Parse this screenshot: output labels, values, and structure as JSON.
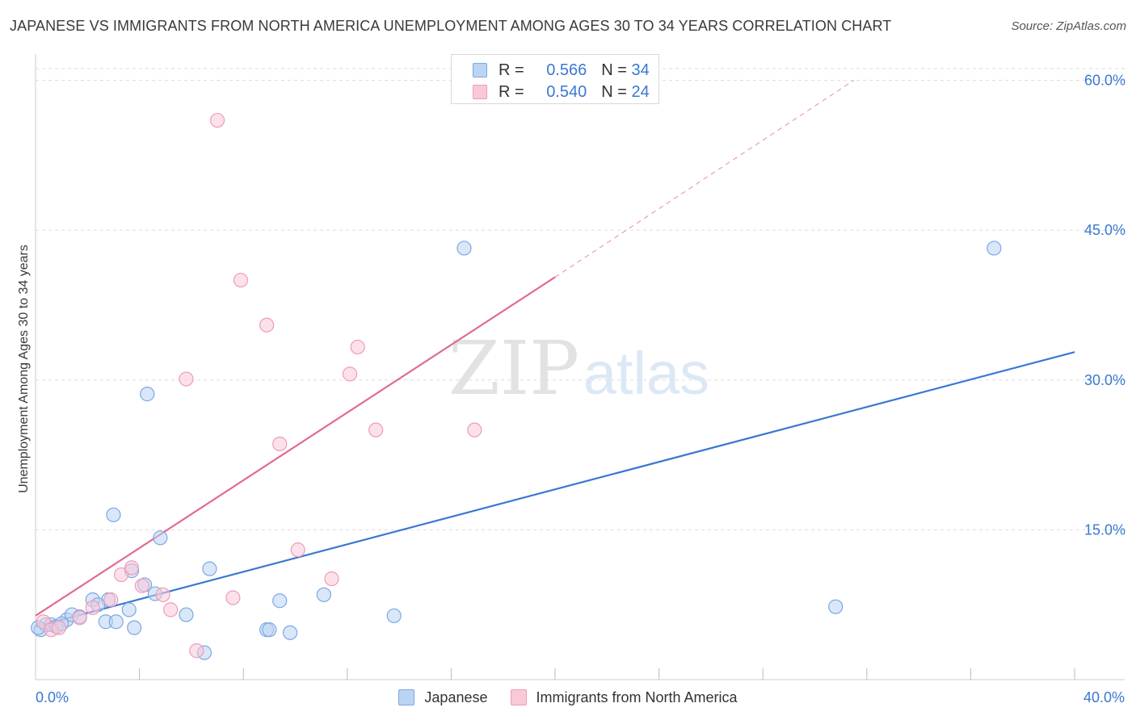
{
  "title": "JAPANESE VS IMMIGRANTS FROM NORTH AMERICA UNEMPLOYMENT AMONG AGES 30 TO 34 YEARS CORRELATION CHART",
  "source": "Source: ZipAtlas.com",
  "watermark": {
    "zip": "ZIP",
    "atlas": "atlas"
  },
  "legend_top": [
    {
      "r_label": "R =",
      "r_value": "0.566",
      "n_label": "N =",
      "n_value": "34"
    },
    {
      "r_label": "R =",
      "r_value": "0.540",
      "n_label": "N =",
      "n_value": "24"
    }
  ],
  "colors": {
    "blue_fill": "#bcd4f4",
    "blue_stroke": "#7aa8e4",
    "blue_line": "#3a78d0",
    "pink_fill": "#f9c9d8",
    "pink_stroke": "#ee9cb6",
    "pink_line": "#e26a93",
    "grid": "#dddddd",
    "tick_text": "#3a78d0"
  },
  "chart_data": {
    "type": "scatter",
    "title": "JAPANESE VS IMMIGRANTS FROM NORTH AMERICA UNEMPLOYMENT AMONG AGES 30 TO 34 YEARS CORRELATION CHART",
    "xlabel": "",
    "ylabel": "Unemployment Among Ages 30 to 34 years",
    "xlim": [
      0,
      40
    ],
    "ylim": [
      0,
      61.5
    ],
    "x_tick_labels": [
      {
        "value": 0,
        "label": "0.0%"
      },
      {
        "value": 40,
        "label": "40.0%"
      }
    ],
    "x_minor_ticks": [
      4,
      8,
      12,
      16,
      20,
      24,
      28,
      32,
      36,
      40
    ],
    "y_tick_labels": [
      {
        "value": 15,
        "label": "15.0%"
      },
      {
        "value": 30,
        "label": "30.0%"
      },
      {
        "value": 45,
        "label": "45.0%"
      },
      {
        "value": 60,
        "label": "60.0%"
      }
    ],
    "grid": true,
    "legend_position": "bottom-center",
    "series": [
      {
        "name": "Japanese",
        "color": "#3a78d0",
        "points": [
          [
            0.2,
            5.0
          ],
          [
            0.4,
            5.5
          ],
          [
            0.6,
            5.5
          ],
          [
            0.8,
            5.3
          ],
          [
            1.2,
            6.0
          ],
          [
            1.4,
            6.5
          ],
          [
            1.7,
            6.3
          ],
          [
            2.2,
            8.0
          ],
          [
            2.7,
            5.8
          ],
          [
            3.1,
            5.8
          ],
          [
            3.0,
            16.5
          ],
          [
            3.6,
            7.0
          ],
          [
            3.7,
            10.9
          ],
          [
            3.8,
            5.2
          ],
          [
            4.2,
            9.5
          ],
          [
            4.3,
            28.6
          ],
          [
            4.6,
            8.6
          ],
          [
            4.8,
            14.2
          ],
          [
            5.8,
            6.5
          ],
          [
            6.5,
            2.7
          ],
          [
            6.7,
            11.1
          ],
          [
            8.9,
            5.0
          ],
          [
            9.0,
            5.0
          ],
          [
            9.4,
            7.9
          ],
          [
            9.8,
            4.7
          ],
          [
            11.1,
            8.5
          ],
          [
            13.8,
            6.4
          ],
          [
            16.5,
            43.2
          ],
          [
            30.8,
            7.3
          ],
          [
            36.9,
            43.2
          ],
          [
            2.8,
            8.0
          ],
          [
            0.1,
            5.2
          ],
          [
            1.0,
            5.6
          ],
          [
            2.4,
            7.5
          ]
        ],
        "trend": {
          "x_start": 0,
          "y_start": 5.3,
          "x_end": 40,
          "y_end": 32.8,
          "dashed_extension": false
        }
      },
      {
        "name": "Immigrants from North America",
        "color": "#e26a93",
        "points": [
          [
            0.3,
            5.8
          ],
          [
            0.6,
            5.0
          ],
          [
            0.9,
            5.2
          ],
          [
            1.7,
            6.2
          ],
          [
            2.2,
            7.2
          ],
          [
            2.9,
            8.0
          ],
          [
            3.3,
            10.5
          ],
          [
            3.7,
            11.2
          ],
          [
            4.1,
            9.4
          ],
          [
            4.9,
            8.5
          ],
          [
            5.2,
            7.0
          ],
          [
            5.8,
            30.1
          ],
          [
            6.2,
            2.9
          ],
          [
            7.0,
            56.0
          ],
          [
            7.6,
            8.2
          ],
          [
            7.9,
            40.0
          ],
          [
            8.9,
            35.5
          ],
          [
            9.4,
            23.6
          ],
          [
            10.1,
            13.0
          ],
          [
            11.4,
            10.1
          ],
          [
            12.1,
            30.6
          ],
          [
            12.4,
            33.3
          ],
          [
            13.1,
            25.0
          ],
          [
            16.9,
            25.0
          ]
        ],
        "trend": {
          "x_start": 0,
          "y_start": 6.4,
          "x_end": 20,
          "y_end": 40.3,
          "dashed_to_x": 31.5,
          "dashed_to_y": 60.0
        }
      }
    ]
  }
}
